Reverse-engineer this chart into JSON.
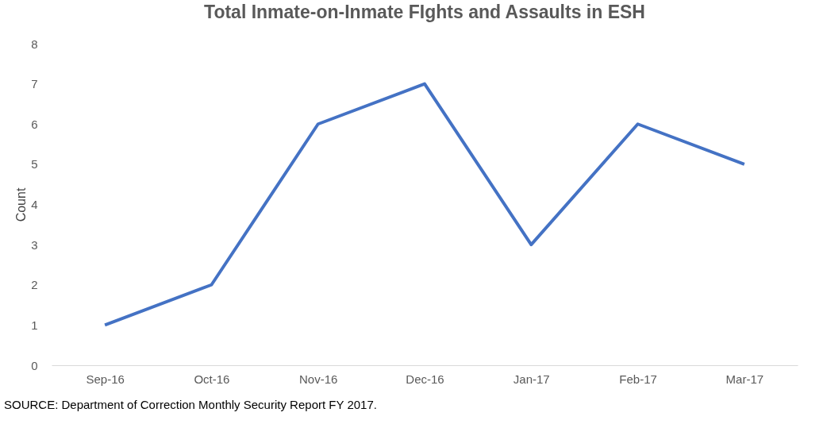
{
  "chart_data": {
    "type": "line",
    "title": "Total Inmate-on-Inmate FIghts and Assaults in ESH",
    "ylabel": "Count",
    "categories": [
      "Sep-16",
      "Oct-16",
      "Nov-16",
      "Dec-16",
      "Jan-17",
      "Feb-17",
      "Mar-17"
    ],
    "series": [
      {
        "color": "#4472c4",
        "values": [
          1,
          2,
          6,
          7,
          3,
          6,
          5
        ]
      }
    ],
    "ylim": [
      0,
      8
    ],
    "yticks": [
      0,
      1,
      2,
      3,
      4,
      5,
      6,
      7,
      8
    ],
    "grid": false,
    "marker": "none",
    "line_style": "solid",
    "annotations": [
      "SOURCE: Department of Correction Monthly Security Report FY 2017."
    ]
  }
}
